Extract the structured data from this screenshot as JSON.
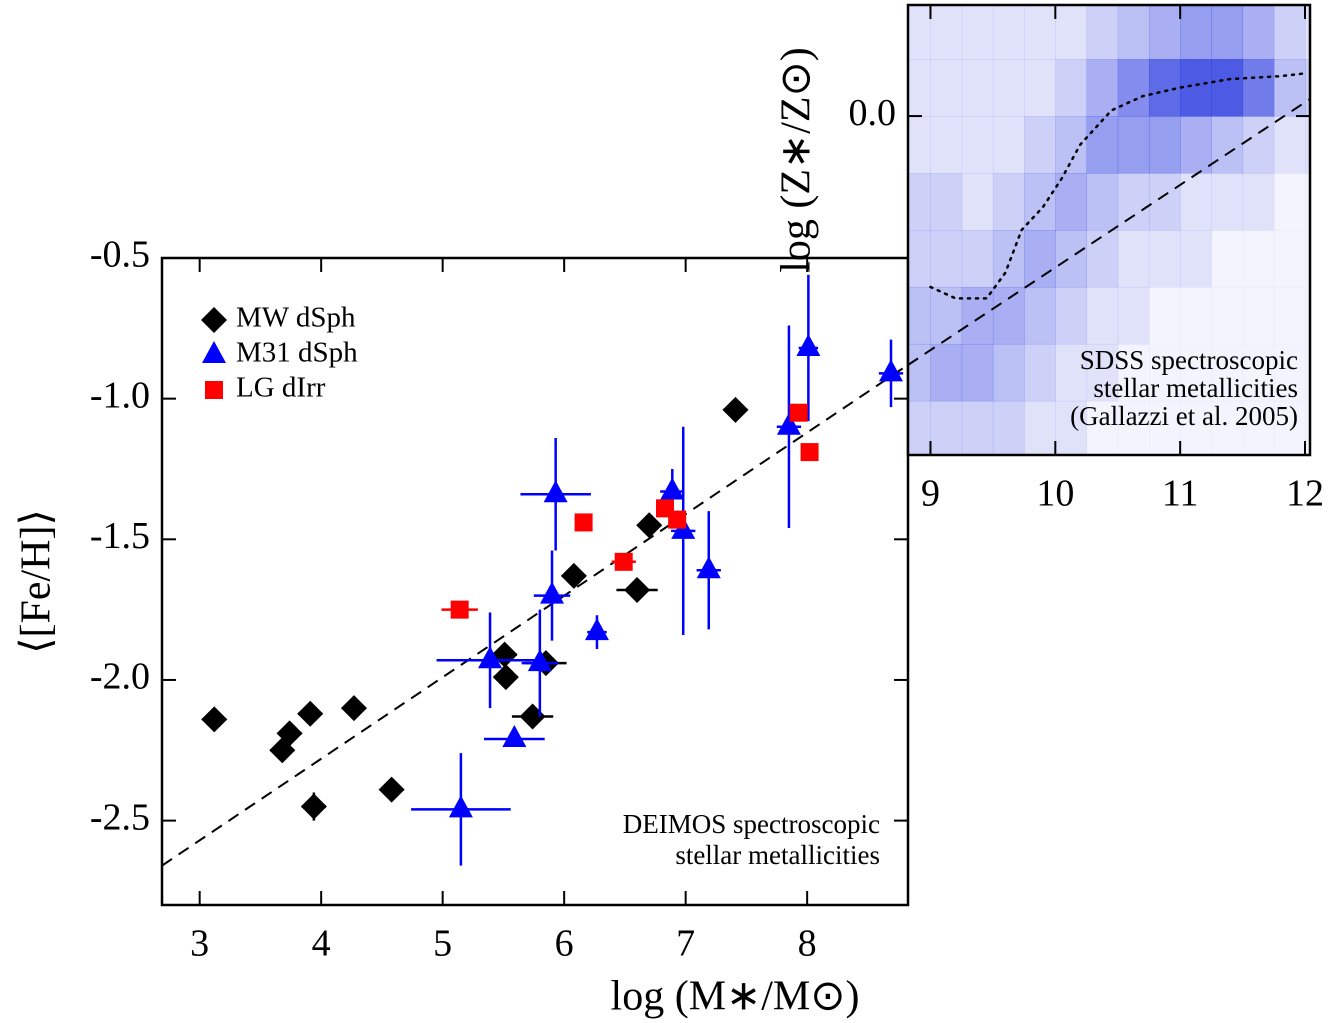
{
  "chart_data": [
    {
      "type": "scatter",
      "xlabel": "log (M∗/M⊙)",
      "ylabel": "⟨[Fe/H]⟩",
      "xlim": [
        2.69,
        8.83
      ],
      "ylim": [
        -2.8,
        -0.5
      ],
      "xticks": [
        3,
        4,
        5,
        6,
        7,
        8
      ],
      "yticks": [
        -0.5,
        {
          "value": -1.0,
          "label": "-1.0"
        },
        -1.5,
        {
          "value": -2.0,
          "label": "-2.0"
        },
        -2.5
      ],
      "legend": "upper left",
      "annotation": [
        "DEIMOS spectroscopic",
        "stellar metallicities"
      ],
      "fit": {
        "x": [
          2.69,
          8.83
        ],
        "y": [
          -2.66,
          -0.88
        ]
      },
      "series": [
        {
          "name": "MW dSph",
          "color": "#000000",
          "marker": "diamond",
          "x": [
            3.12,
            3.68,
            3.74,
            3.91,
            3.94,
            4.27,
            4.58,
            5.51,
            5.52,
            5.74,
            5.85,
            6.08,
            6.7,
            6.6,
            7.41
          ],
          "values": [
            -2.14,
            -2.25,
            -2.19,
            -2.12,
            -2.45,
            -2.1,
            -2.39,
            -1.91,
            -1.99,
            -2.13,
            -1.94,
            -1.63,
            -1.45,
            -1.68,
            -1.04
          ],
          "xerr": [
            0.1,
            0.1,
            0.1,
            0.1,
            0.1,
            0.1,
            0.1,
            0.1,
            0.1,
            0.17,
            0.17,
            0.1,
            0.1,
            0.17,
            0.1
          ],
          "yerr": [
            0.02,
            0.02,
            0.02,
            0.02,
            0.05,
            0.02,
            0.02,
            0.02,
            0.02,
            0.02,
            0.02,
            0.02,
            0.02,
            0.02,
            0.02
          ]
        },
        {
          "name": "M31 dSph",
          "color": "#0000ff",
          "marker": "triangle",
          "x": [
            5.39,
            5.59,
            5.15,
            5.8,
            5.93,
            5.9,
            6.27,
            6.89,
            6.98,
            7.19,
            7.85,
            8.01,
            8.69
          ],
          "values": [
            -1.93,
            -2.21,
            -2.46,
            -1.94,
            -1.34,
            -1.7,
            -1.83,
            -1.33,
            -1.47,
            -1.61,
            -1.1,
            -0.82,
            -0.91
          ],
          "xerr": [
            0.44,
            0.25,
            0.41,
            0.15,
            0.29,
            0.15,
            0.08,
            0.1,
            0.1,
            0.1,
            0.1,
            0.08,
            0.1
          ],
          "yerr": [
            0.17,
            0.02,
            0.2,
            0.19,
            0.2,
            0.16,
            0.06,
            0.08,
            0.37,
            0.21,
            0.36,
            0.26,
            0.12
          ]
        },
        {
          "name": "LG dIrr",
          "color": "#ff0000",
          "marker": "square",
          "x": [
            5.14,
            6.16,
            6.49,
            6.83,
            6.93,
            7.93,
            8.02
          ],
          "values": [
            -1.75,
            -1.44,
            -1.58,
            -1.39,
            -1.43,
            -1.05,
            -1.19
          ],
          "xerr": [
            0.15,
            0.05,
            0.1,
            0.05,
            0.05,
            0.05,
            0.05
          ],
          "yerr": [
            0.03,
            0.02,
            0.02,
            0.02,
            0.02,
            0.02,
            0.02
          ]
        }
      ]
    },
    {
      "type": "heatmap",
      "ylabel": "log (Z∗/Z⊙)",
      "xlim": [
        8.82,
        12.04
      ],
      "ylim": [
        -1.19,
        0.39
      ],
      "xticks": [
        9,
        10,
        11,
        12
      ],
      "yticks": [
        {
          "value": 0,
          "label": "0.0"
        }
      ],
      "color": "#2f3fe0",
      "x_edges": [
        8.75,
        9.0,
        9.25,
        9.5,
        9.75,
        10.0,
        10.25,
        10.5,
        10.75,
        11.0,
        11.25,
        11.5,
        11.75,
        12.0,
        12.25
      ],
      "y_edges": [
        -1.2,
        -1.0,
        -0.8,
        -0.6,
        -0.4,
        -0.2,
        0.0,
        0.2,
        0.4
      ],
      "z": [
        [
          2,
          2,
          2,
          2,
          1,
          1,
          0,
          0,
          0,
          0,
          0,
          0,
          0,
          0
        ],
        [
          3,
          4,
          4,
          3,
          2,
          1,
          1,
          0,
          0,
          0,
          0,
          0,
          0,
          0
        ],
        [
          3,
          3,
          4,
          4,
          3,
          2,
          1,
          1,
          0,
          0,
          0,
          0,
          0,
          0
        ],
        [
          2,
          2,
          2,
          3,
          4,
          3,
          2,
          1,
          1,
          1,
          0,
          0,
          0,
          0
        ],
        [
          2,
          2,
          1,
          2,
          3,
          4,
          3,
          2,
          2,
          1,
          1,
          1,
          0,
          0
        ],
        [
          1,
          1,
          1,
          1,
          2,
          3,
          5,
          5,
          5,
          4,
          3,
          2,
          1,
          1
        ],
        [
          1,
          1,
          1,
          1,
          1,
          2,
          4,
          6,
          8,
          9,
          9,
          7,
          3,
          2
        ],
        [
          1,
          1,
          1,
          1,
          1,
          1,
          2,
          3,
          4,
          5,
          5,
          4,
          2,
          1
        ]
      ],
      "median": {
        "x": [
          9.0,
          9.2,
          9.45,
          9.6,
          9.73,
          9.9,
          10.05,
          10.2,
          10.45,
          10.7,
          11.0,
          11.4,
          11.8,
          12.0
        ],
        "y": [
          -0.6,
          -0.64,
          -0.64,
          -0.55,
          -0.4,
          -0.32,
          -0.22,
          -0.1,
          0.02,
          0.07,
          0.1,
          0.13,
          0.14,
          0.15
        ]
      },
      "fit": {
        "x": [
          8.82,
          12.04
        ],
        "y": [
          -0.874,
          0.06
        ]
      },
      "annotation": [
        "SDSS spectroscopic",
        "stellar metallicities",
        "(Gallazzi et al. 2005)"
      ]
    }
  ]
}
